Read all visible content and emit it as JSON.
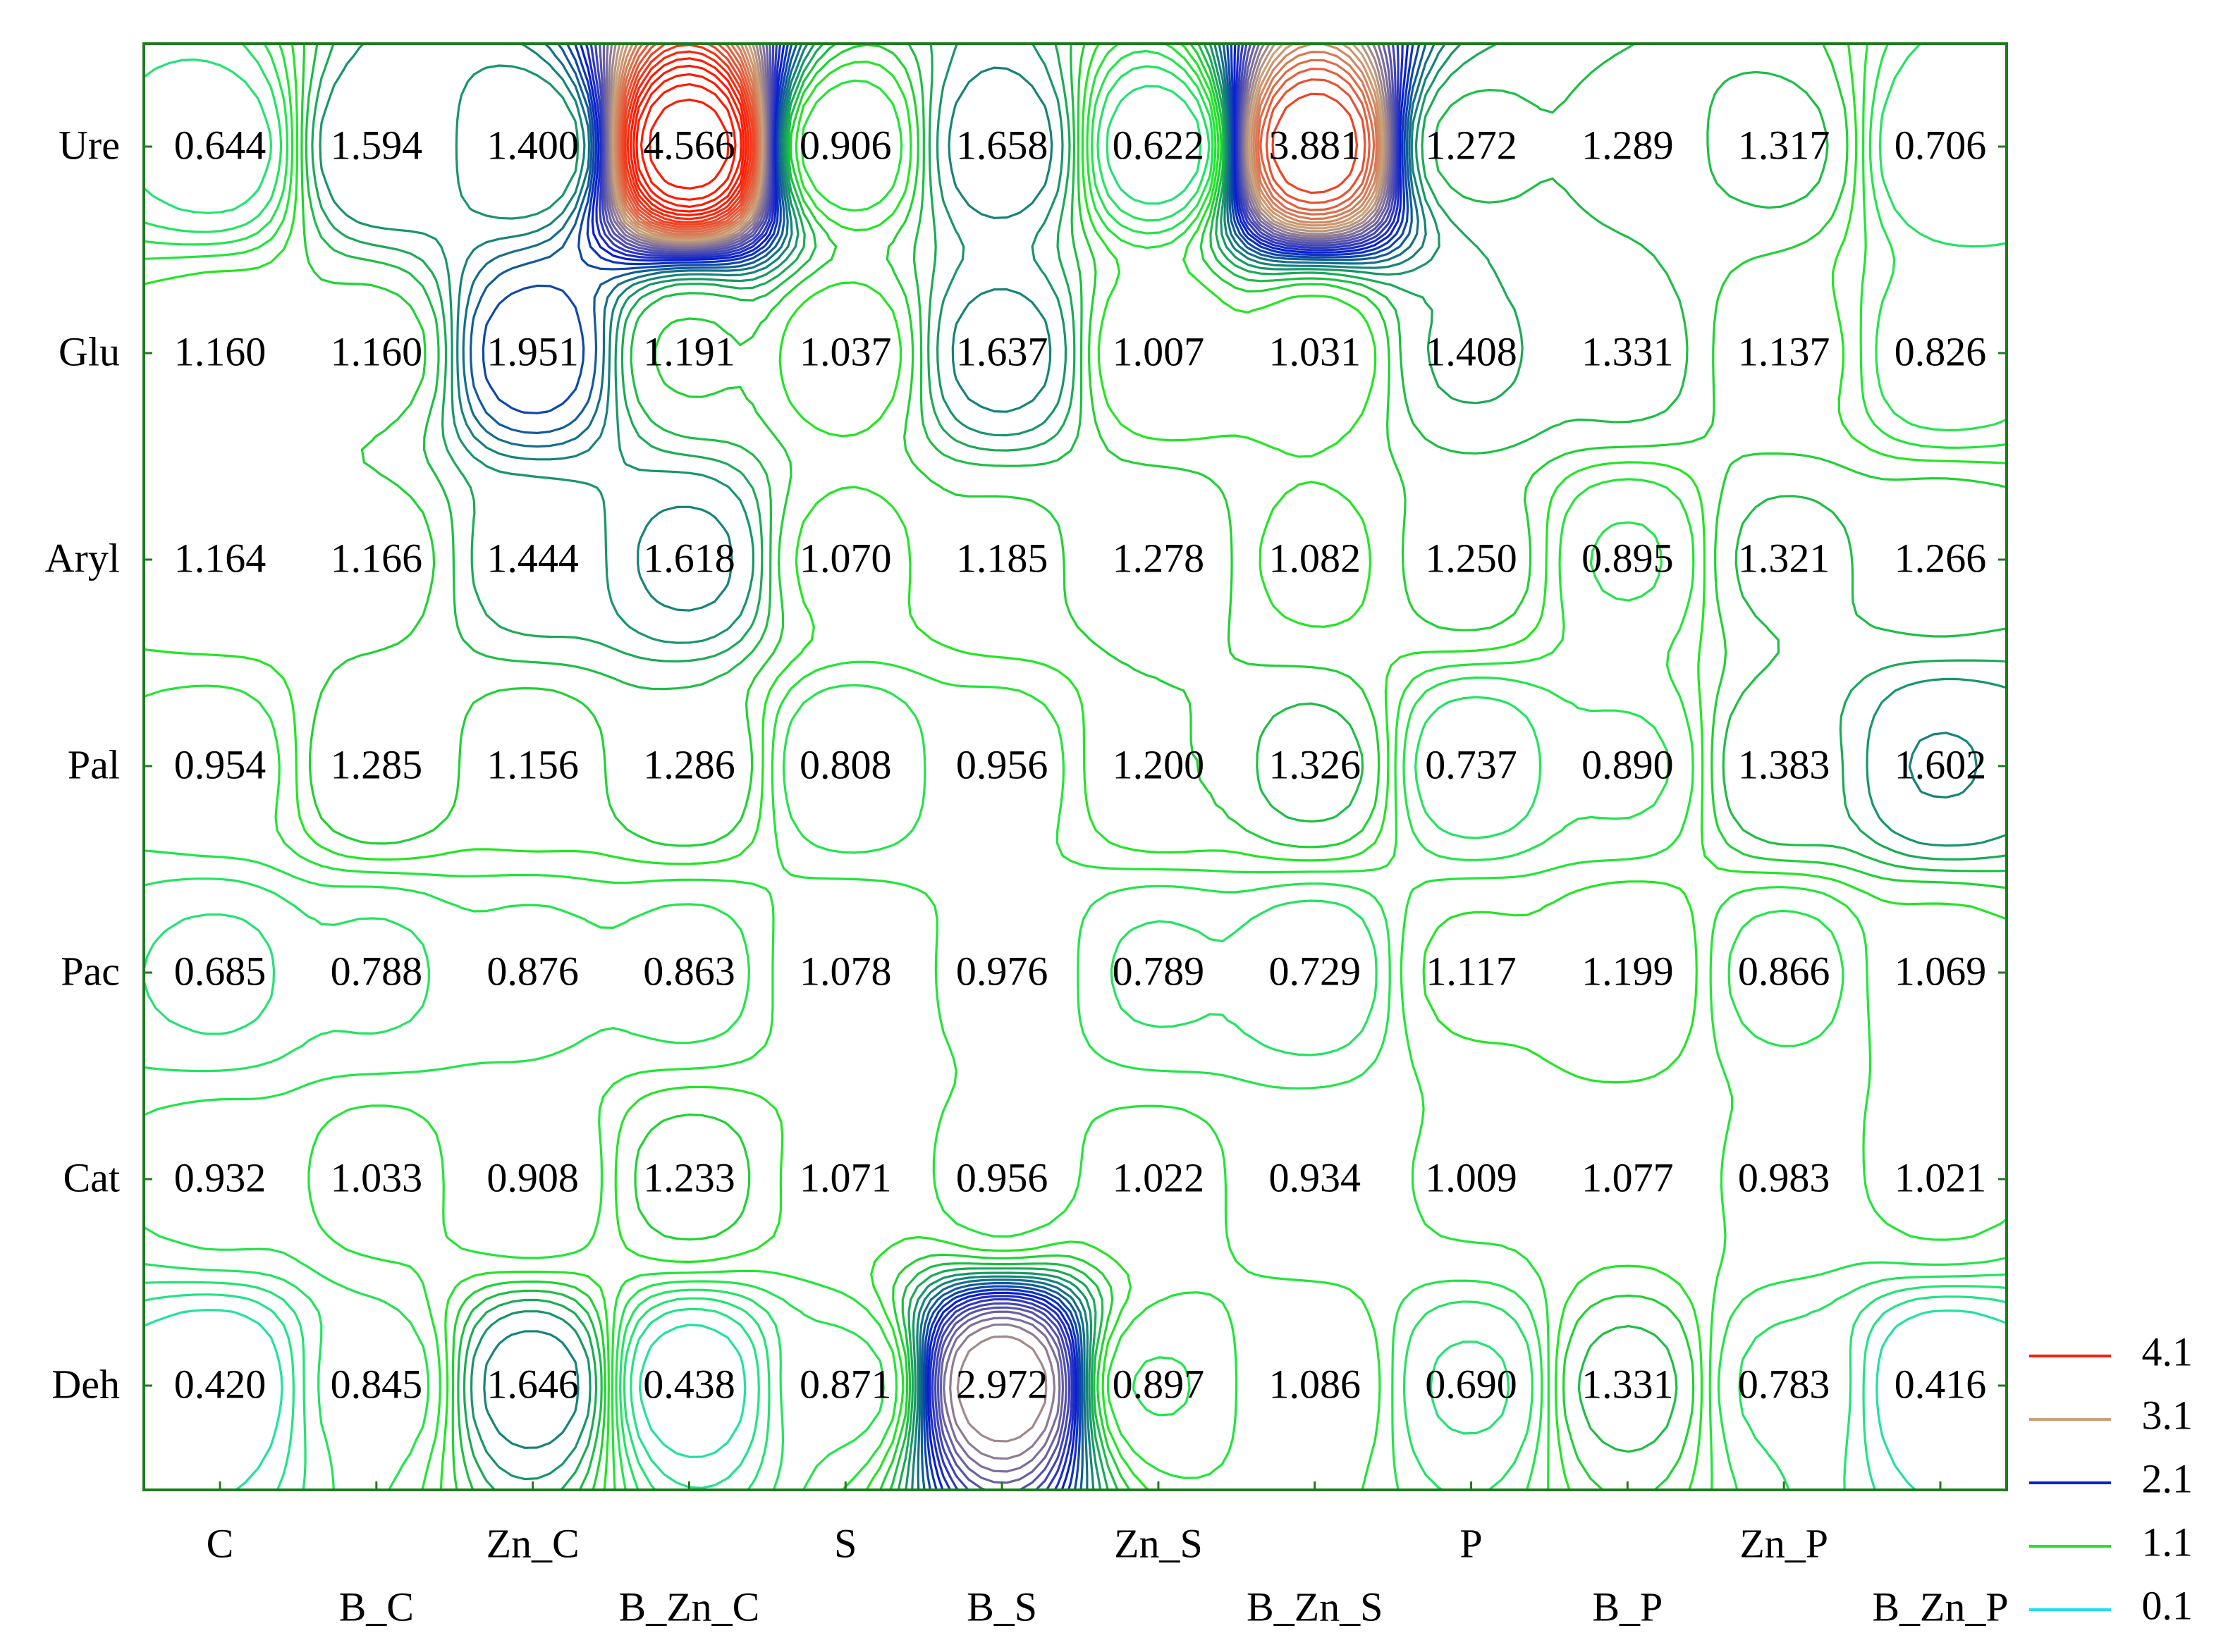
{
  "chart_data": {
    "type": "heatmap",
    "subtype": "contour",
    "title": "",
    "xlabel": "",
    "ylabel": "",
    "rows": [
      "Ure",
      "Glu",
      "Aryl",
      "Pal",
      "Pac",
      "Cat",
      "Deh"
    ],
    "columns": [
      "C",
      "B_C",
      "Zn_C",
      "B_Zn_C",
      "S",
      "B_S",
      "Zn_S",
      "B_Zn_S",
      "P",
      "B_P",
      "Zn_P",
      "B_Zn_P"
    ],
    "x_tick_rows": {
      "top": [
        "C",
        "Zn_C",
        "S",
        "Zn_S",
        "P",
        "Zn_P"
      ],
      "bottom": [
        "B_C",
        "B_Zn_C",
        "B_S",
        "B_Zn_S",
        "B_P",
        "B_Zn_P"
      ]
    },
    "values": [
      [
        "0.644",
        "1.594",
        "1.400",
        "4.566",
        "0.906",
        "1.658",
        "0.622",
        "3.881",
        "1.272",
        "1.289",
        "1.317",
        "0.706"
      ],
      [
        "1.160",
        "1.160",
        "1.951",
        "1.191",
        "1.037",
        "1.637",
        "1.007",
        "1.031",
        "1.408",
        "1.331",
        "1.137",
        "0.826"
      ],
      [
        "1.164",
        "1.166",
        "1.444",
        "1.618",
        "1.070",
        "1.185",
        "1.278",
        "1.082",
        "1.250",
        "0.895",
        "1.321",
        "1.266"
      ],
      [
        "0.954",
        "1.285",
        "1.156",
        "1.286",
        "0.808",
        "0.956",
        "1.200",
        "1.326",
        "0.737",
        "0.890",
        "1.383",
        "1.602"
      ],
      [
        "0.685",
        "0.788",
        "0.876",
        "0.863",
        "1.078",
        "0.976",
        "0.789",
        "0.729",
        "1.117",
        "1.199",
        "0.866",
        "1.069"
      ],
      [
        "0.932",
        "1.033",
        "0.908",
        "1.233",
        "1.071",
        "0.956",
        "1.022",
        "0.934",
        "1.009",
        "1.077",
        "0.983",
        "1.021"
      ],
      [
        "0.420",
        "0.845",
        "1.646",
        "0.438",
        "0.871",
        "2.972",
        "0.897",
        "1.086",
        "0.690",
        "1.331",
        "0.783",
        "0.416"
      ]
    ],
    "legend": [
      {
        "label": "4.1",
        "value": 4.1,
        "color": "#ff1a00"
      },
      {
        "label": "3.1",
        "value": 3.1,
        "color": "#c8a27a"
      },
      {
        "label": "2.1",
        "value": 2.1,
        "color": "#0a1fcf"
      },
      {
        "label": "1.1",
        "value": 1.1,
        "color": "#22e622"
      },
      {
        "label": "0.1",
        "value": 0.1,
        "color": "#22dff0"
      }
    ],
    "legend_placement": "bottom-right",
    "grid": false,
    "axis_color": "#1f7a1f"
  }
}
